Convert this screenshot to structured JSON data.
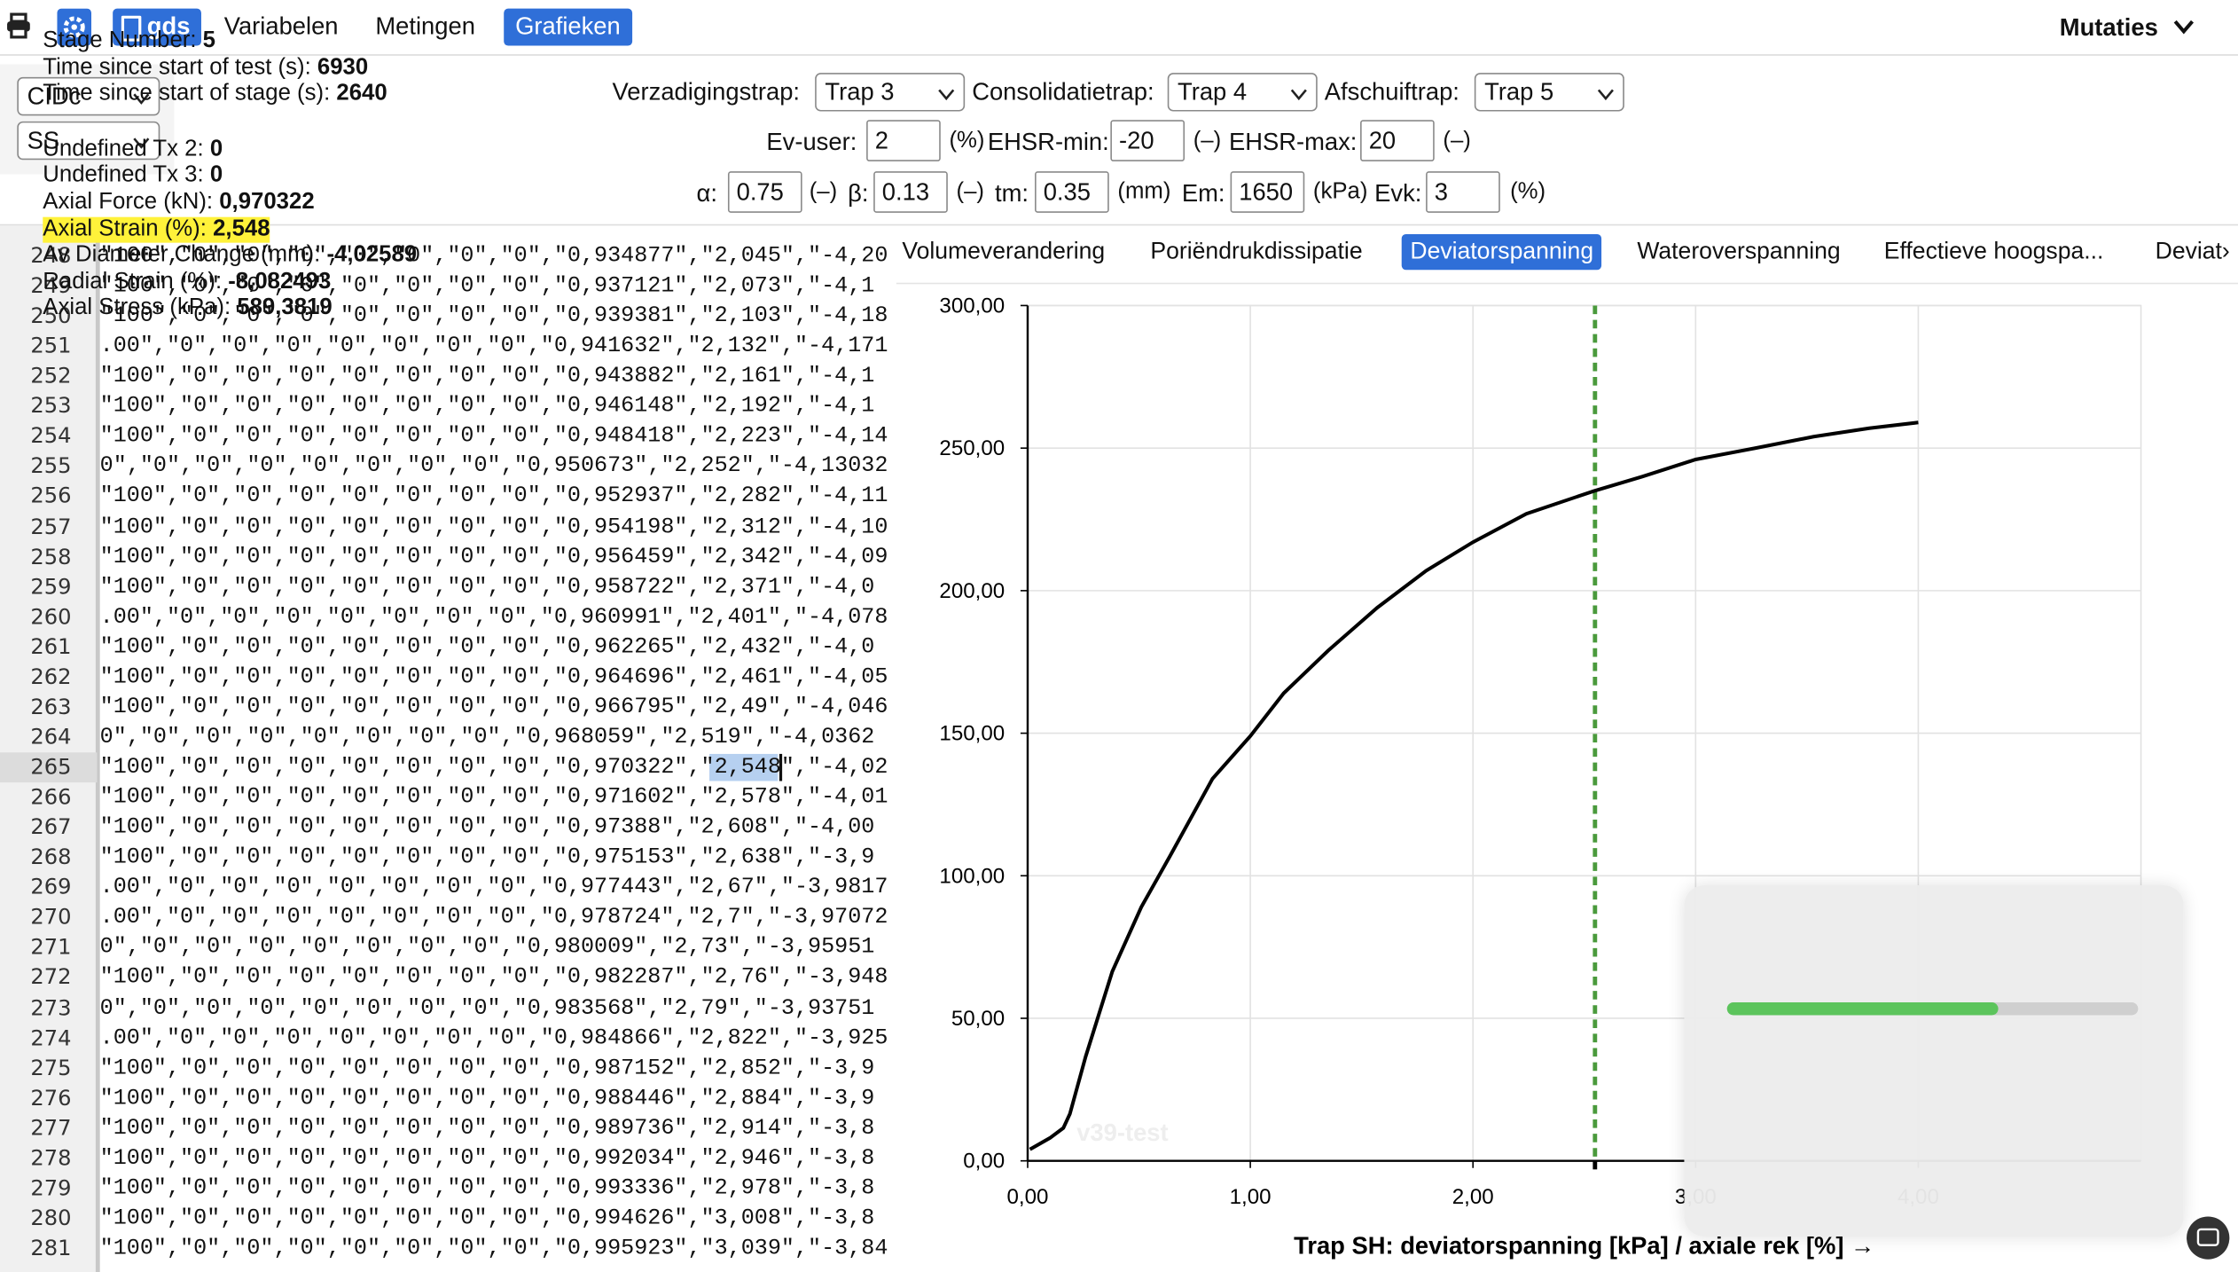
{
  "toolbar": {
    "brand": "gds",
    "menu": [
      "Variabelen",
      "Metingen",
      "Grafieken"
    ],
    "active_index": 2,
    "mutaties": "Mutaties"
  },
  "selects": [
    "CIDc",
    "SS"
  ],
  "stages": [
    {
      "label": "Verzadigingstrap:",
      "value": "Trap 3"
    },
    {
      "label": "Consolidatietrap:",
      "value": "Trap 4"
    },
    {
      "label": "Afschuiftrap:",
      "value": "Trap 5"
    }
  ],
  "parameters": [
    [
      {
        "label": "Ev-user:",
        "value": "2",
        "unit": "(%)"
      },
      {
        "label": "EHSR-min:",
        "value": "-20",
        "unit": "(–)"
      },
      {
        "label": "EHSR-max:",
        "value": "20",
        "unit": "(–)"
      }
    ],
    [
      {
        "label": "α:",
        "value": "0.75",
        "unit": "(–)"
      },
      {
        "label": "β:",
        "value": "0.13",
        "unit": "(–)"
      },
      {
        "label": "tm:",
        "value": "0.35",
        "unit": "(mm)"
      },
      {
        "label": "Em:",
        "value": "1650",
        "unit": "(kPa)"
      },
      {
        "label": "Evk:",
        "value": "3",
        "unit": "(%)"
      }
    ]
  ],
  "tabs": {
    "items": [
      "Volumeverandering",
      "Poriëndrukdissipatie",
      "Deviatorspanning",
      "Wateroverspanning",
      "Effectieve hoogspa...",
      "Deviat›"
    ],
    "active_index": 2
  },
  "code": {
    "lines": [
      {
        "number": 248,
        "text": "\"100\",\"0\",\"0\",\"0\",\"0\",\"0\",\"0\",\"0\",\"0,934877\",\"2,045\",\"-4,20"
      },
      {
        "number": 249,
        "text": "\"100\",\"0\",\"0\",\"0\",\"0\",\"0\",\"0\",\"0\",\"0,937121\",\"2,073\",\"-4,1"
      },
      {
        "number": 250,
        "text": "\"100\",\"0\",\"0\",\"0\",\"0\",\"0\",\"0\",\"0\",\"0,939381\",\"2,103\",\"-4,18"
      },
      {
        "number": 251,
        "text": ".00\",\"0\",\"0\",\"0\",\"0\",\"0\",\"0\",\"0\",\"0,941632\",\"2,132\",\"-4,171"
      },
      {
        "number": 252,
        "text": "\"100\",\"0\",\"0\",\"0\",\"0\",\"0\",\"0\",\"0\",\"0,943882\",\"2,161\",\"-4,1"
      },
      {
        "number": 253,
        "text": "\"100\",\"0\",\"0\",\"0\",\"0\",\"0\",\"0\",\"0\",\"0,946148\",\"2,192\",\"-4,1"
      },
      {
        "number": 254,
        "text": "\"100\",\"0\",\"0\",\"0\",\"0\",\"0\",\"0\",\"0\",\"0,948418\",\"2,223\",\"-4,14"
      },
      {
        "number": 255,
        "text": "0\",\"0\",\"0\",\"0\",\"0\",\"0\",\"0\",\"0\",\"0,950673\",\"2,252\",\"-4,13032"
      },
      {
        "number": 256,
        "text": "\"100\",\"0\",\"0\",\"0\",\"0\",\"0\",\"0\",\"0\",\"0,952937\",\"2,282\",\"-4,11"
      },
      {
        "number": 257,
        "text": "\"100\",\"0\",\"0\",\"0\",\"0\",\"0\",\"0\",\"0\",\"0,954198\",\"2,312\",\"-4,10"
      },
      {
        "number": 258,
        "text": "\"100\",\"0\",\"0\",\"0\",\"0\",\"0\",\"0\",\"0\",\"0,956459\",\"2,342\",\"-4,09"
      },
      {
        "number": 259,
        "text": "\"100\",\"0\",\"0\",\"0\",\"0\",\"0\",\"0\",\"0\",\"0,958722\",\"2,371\",\"-4,0"
      },
      {
        "number": 260,
        "text": ".00\",\"0\",\"0\",\"0\",\"0\",\"0\",\"0\",\"0\",\"0,960991\",\"2,401\",\"-4,078"
      },
      {
        "number": 261,
        "text": "\"100\",\"0\",\"0\",\"0\",\"0\",\"0\",\"0\",\"0\",\"0,962265\",\"2,432\",\"-4,0"
      },
      {
        "number": 262,
        "text": "\"100\",\"0\",\"0\",\"0\",\"0\",\"0\",\"0\",\"0\",\"0,964696\",\"2,461\",\"-4,05"
      },
      {
        "number": 263,
        "text": "\"100\",\"0\",\"0\",\"0\",\"0\",\"0\",\"0\",\"0\",\"0,966795\",\"2,49\",\"-4,046"
      },
      {
        "number": 264,
        "text": "0\",\"0\",\"0\",\"0\",\"0\",\"0\",\"0\",\"0\",\"0,968059\",\"2,519\",\"-4,0362"
      },
      {
        "number": 265,
        "text": "\"100\",\"0\",\"0\",\"0\",\"0\",\"0\",\"0\",\"0\",\"0,970322\",\"2,548\",\"-4,02"
      },
      {
        "number": 266,
        "text": "\"100\",\"0\",\"0\",\"0\",\"0\",\"0\",\"0\",\"0\",\"0,971602\",\"2,578\",\"-4,01"
      },
      {
        "number": 267,
        "text": "\"100\",\"0\",\"0\",\"0\",\"0\",\"0\",\"0\",\"0\",\"0,97388\",\"2,608\",\"-4,00"
      },
      {
        "number": 268,
        "text": "\"100\",\"0\",\"0\",\"0\",\"0\",\"0\",\"0\",\"0\",\"0,975153\",\"2,638\",\"-3,9"
      },
      {
        "number": 269,
        "text": ".00\",\"0\",\"0\",\"0\",\"0\",\"0\",\"0\",\"0\",\"0,977443\",\"2,67\",\"-3,9817"
      },
      {
        "number": 270,
        "text": ".00\",\"0\",\"0\",\"0\",\"0\",\"0\",\"0\",\"0\",\"0,978724\",\"2,7\",\"-3,97072"
      },
      {
        "number": 271,
        "text": "0\",\"0\",\"0\",\"0\",\"0\",\"0\",\"0\",\"0\",\"0,980009\",\"2,73\",\"-3,95951"
      },
      {
        "number": 272,
        "text": "\"100\",\"0\",\"0\",\"0\",\"0\",\"0\",\"0\",\"0\",\"0,982287\",\"2,76\",\"-3,948"
      },
      {
        "number": 273,
        "text": "0\",\"0\",\"0\",\"0\",\"0\",\"0\",\"0\",\"0\",\"0,983568\",\"2,79\",\"-3,93751"
      },
      {
        "number": 274,
        "text": ".00\",\"0\",\"0\",\"0\",\"0\",\"0\",\"0\",\"0\",\"0,984866\",\"2,822\",\"-3,925"
      },
      {
        "number": 275,
        "text": "\"100\",\"0\",\"0\",\"0\",\"0\",\"0\",\"0\",\"0\",\"0,987152\",\"2,852\",\"-3,9"
      },
      {
        "number": 276,
        "text": "\"100\",\"0\",\"0\",\"0\",\"0\",\"0\",\"0\",\"0\",\"0,988446\",\"2,884\",\"-3,9"
      },
      {
        "number": 277,
        "text": "\"100\",\"0\",\"0\",\"0\",\"0\",\"0\",\"0\",\"0\",\"0,989736\",\"2,914\",\"-3,8"
      },
      {
        "number": 278,
        "text": "\"100\",\"0\",\"0\",\"0\",\"0\",\"0\",\"0\",\"0\",\"0,992034\",\"2,946\",\"-3,8"
      },
      {
        "number": 279,
        "text": "\"100\",\"0\",\"0\",\"0\",\"0\",\"0\",\"0\",\"0\",\"0,993336\",\"2,978\",\"-3,8"
      },
      {
        "number": 280,
        "text": "\"100\",\"0\",\"0\",\"0\",\"0\",\"0\",\"0\",\"0\",\"0,994626\",\"3,008\",\"-3,8"
      },
      {
        "number": 281,
        "text": "\"100\",\"0\",\"0\",\"0\",\"0\",\"0\",\"0\",\"0\",\"0,995923\",\"3,039\",\"-3,84"
      }
    ]
  },
  "chart_data": {
    "type": "line",
    "x_label": "Trap SH: deviatorspanning [kPa] / axiale rek [%] →",
    "watermark": "v39-test",
    "xlim": [
      0,
      5
    ],
    "ylim": [
      0,
      300
    ],
    "xticks": [
      {
        "value": 0,
        "label": "0,00"
      },
      {
        "value": 1,
        "label": "1,00"
      },
      {
        "value": 2,
        "label": "2,00"
      },
      {
        "value": 3,
        "label": "3,00"
      },
      {
        "value": 4,
        "label": "4,00"
      }
    ],
    "yticks": [
      {
        "value": 0,
        "label": "0,00"
      },
      {
        "value": 50,
        "label": "50,00"
      },
      {
        "value": 100,
        "label": "100,00"
      },
      {
        "value": 150,
        "label": "150,00"
      },
      {
        "value": 200,
        "label": "200,00"
      },
      {
        "value": 250,
        "label": "250,00"
      },
      {
        "value": 300,
        "label": "300,00"
      }
    ],
    "grid": true,
    "series": [
      {
        "color": "#000000",
        "x": [
          0.01,
          0.1,
          0.16,
          0.19,
          0.26,
          0.38,
          0.51,
          0.64,
          0.83,
          1.0,
          1.15,
          1.35,
          1.57,
          1.79,
          2.0,
          2.24,
          2.545,
          2.76,
          3.0,
          3.27,
          3.53,
          3.78,
          4.0
        ],
        "values": [
          4,
          8,
          11.5,
          16.5,
          36.5,
          66.4,
          89,
          107,
          134,
          149,
          164,
          179,
          194,
          207,
          217,
          227,
          235,
          240,
          246,
          250,
          254,
          257,
          259
        ]
      }
    ],
    "marker_x": 2.548,
    "marker_color": "#4a9a3c"
  },
  "tooltip": {
    "items": [
      {
        "label": "Stage Number:",
        "value": "5"
      },
      {
        "label": "Time since start of test (s):",
        "value": "6930"
      },
      {
        "label": "Time since start of stage (s):",
        "value": "2640"
      },
      {
        "label": "Undefined Tx 2:",
        "value": "0"
      },
      {
        "label": "Undefined Tx 3:",
        "value": "0"
      },
      {
        "label": "Axial Force (kN):",
        "value": "0,970322"
      },
      {
        "label": "Axial Strain (%):",
        "value": "2,548",
        "highlight": true
      },
      {
        "label": "Av Diameter Change (mm):",
        "value": "-4,02589"
      },
      {
        "label": "Radial Strain (%):",
        "value": "-8,082493"
      },
      {
        "label": "Axial Stress (kPa):",
        "value": "589,3819"
      }
    ]
  }
}
